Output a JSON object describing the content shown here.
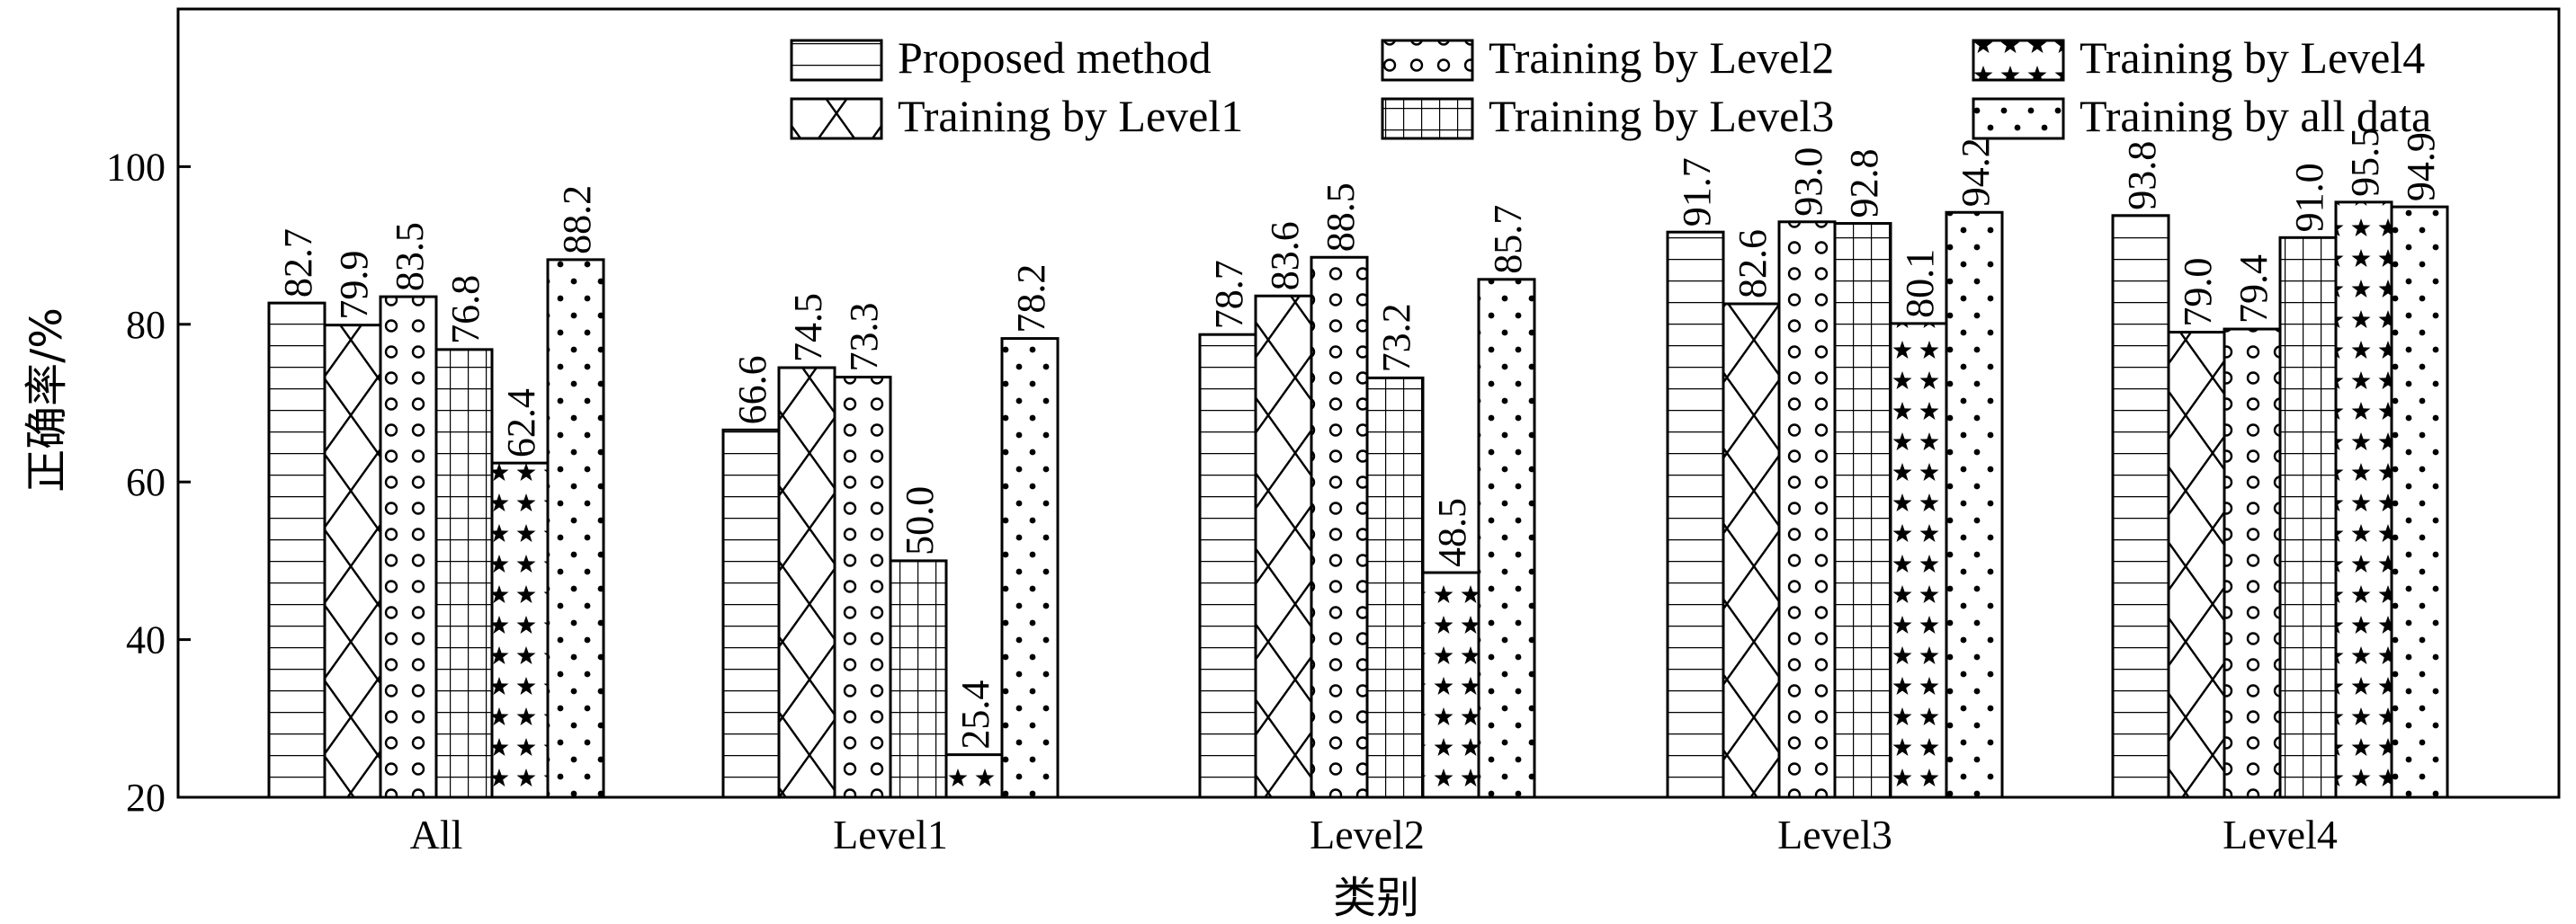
{
  "chart_data": {
    "type": "bar",
    "title": "",
    "xlabel": "类别",
    "ylabel": "正确率/%",
    "ylim": [
      20,
      120
    ],
    "yticks": [
      20,
      40,
      60,
      80,
      100
    ],
    "grid": false,
    "legend_position": "top-right",
    "categories": [
      "All",
      "Level1",
      "Level2",
      "Level3",
      "Level4"
    ],
    "series": [
      {
        "name": "Proposed method",
        "pattern": "horizontal-lines",
        "values": [
          82.7,
          66.6,
          78.7,
          91.7,
          93.8
        ],
        "labels": [
          "82.7",
          "66.6",
          "78.7",
          "91.7",
          "93.8"
        ]
      },
      {
        "name": "Training by Level1",
        "pattern": "cross-hatch",
        "values": [
          79.9,
          74.5,
          83.6,
          82.6,
          79.0
        ],
        "labels": [
          "79.9",
          "74.5",
          "83.6",
          "82.6",
          "79.0"
        ]
      },
      {
        "name": "Training by Level2",
        "pattern": "circles",
        "values": [
          83.5,
          73.3,
          88.5,
          93.0,
          79.4
        ],
        "labels": [
          "83.5",
          "73.3",
          "88.5",
          "93.0",
          "79.4"
        ]
      },
      {
        "name": "Training by Level3",
        "pattern": "grid",
        "values": [
          76.8,
          50.0,
          73.2,
          92.8,
          91.0
        ],
        "labels": [
          "76.8",
          "50.0",
          "73.2",
          "92.8",
          "91.0"
        ]
      },
      {
        "name": "Training by Level4",
        "pattern": "stars",
        "values": [
          62.4,
          25.4,
          48.5,
          80.1,
          95.5
        ],
        "labels": [
          "62.4",
          "25.4",
          "48.5",
          "80.1",
          "95.5"
        ]
      },
      {
        "name": "Training by all data",
        "pattern": "dots",
        "values": [
          88.2,
          78.2,
          85.7,
          94.2,
          94.9
        ],
        "labels": [
          "88.2",
          "78.2",
          "85.7",
          "94.2",
          "94.9"
        ]
      }
    ]
  }
}
